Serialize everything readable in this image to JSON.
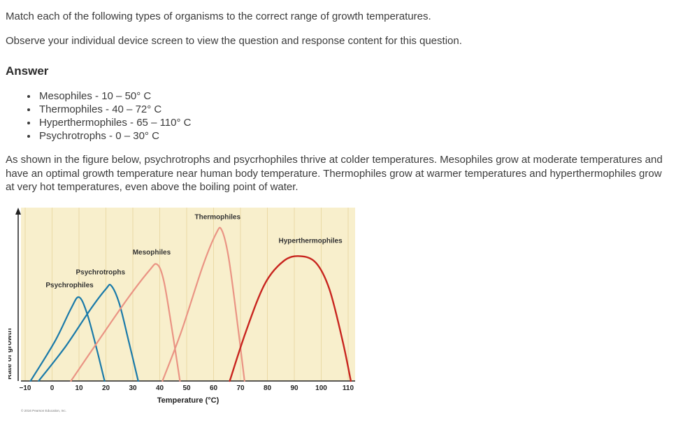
{
  "question": {
    "prompt": "Match each of the following types of organisms to the correct range of growth temperatures.",
    "note": "Observe your individual device screen to view the question and response content for this question."
  },
  "answer": {
    "heading": "Answer",
    "items": [
      "Mesophiles  - 10 – 50° C",
      "Thermophiles - 40 – 72°  C",
      "Hyperthermophiles - 65 – 110° C",
      "Psychrotrophs - 0 – 30° C"
    ],
    "explanation": "As shown in the figure below, psychrotrophs and psycrhophiles thrive at colder temperatures. Mesophiles grow at moderate temperatures and have an optimal growth temperature near human body temperature. Thermophiles grow at warmer temperatures and hyperthermophiles grow at very hot temperatures, even above the boiling point of water."
  },
  "chart_data": {
    "type": "line",
    "title": "",
    "xlabel": "Temperature (°C)",
    "ylabel": "Rate of growth",
    "xlim": [
      -10,
      110
    ],
    "ylim": [
      0,
      1
    ],
    "x_ticks": [
      -10,
      0,
      10,
      20,
      30,
      40,
      50,
      60,
      70,
      80,
      90,
      100,
      110
    ],
    "grid": true,
    "legend_position": "inline-labels",
    "plot_background": "#f8efcc",
    "grid_color": "#eadaa6",
    "axis_color": "#222222",
    "label_color": "#333333",
    "credit": "© 2016 Pearson Education, Inc.",
    "series": [
      {
        "name": "Psychrophiles",
        "color": "#1a7aa9",
        "stroke_width": 2.2,
        "optimum_temp": 10,
        "points": [
          [
            -8,
            0
          ],
          [
            1,
            0.24
          ],
          [
            7,
            0.44
          ],
          [
            10,
            0.51
          ],
          [
            13,
            0.41
          ],
          [
            16.5,
            0.2
          ],
          [
            19.5,
            0
          ]
        ],
        "label_pos": [
          6.5,
          0.57
        ]
      },
      {
        "name": "Psychrotrophs",
        "color": "#1a7aa9",
        "stroke_width": 2.2,
        "optimum_temp": 22,
        "points": [
          [
            -5,
            0
          ],
          [
            5,
            0.21
          ],
          [
            14,
            0.43
          ],
          [
            20,
            0.56
          ],
          [
            22,
            0.58
          ],
          [
            25,
            0.47
          ],
          [
            28.5,
            0.24
          ],
          [
            32,
            0
          ]
        ],
        "label_pos": [
          18,
          0.65
        ]
      },
      {
        "name": "Mesophiles",
        "color": "#ea9484",
        "stroke_width": 2.2,
        "optimum_temp": 39,
        "points": [
          [
            7,
            0
          ],
          [
            17,
            0.24
          ],
          [
            28,
            0.5
          ],
          [
            36,
            0.67
          ],
          [
            39,
            0.71
          ],
          [
            41.5,
            0.61
          ],
          [
            44.5,
            0.32
          ],
          [
            47.5,
            0
          ]
        ],
        "label_pos": [
          37,
          0.77
        ]
      },
      {
        "name": "Thermophiles",
        "color": "#ea9484",
        "stroke_width": 2.2,
        "optimum_temp": 63,
        "points": [
          [
            41,
            0
          ],
          [
            48,
            0.3
          ],
          [
            56,
            0.7
          ],
          [
            61,
            0.9
          ],
          [
            63,
            0.92
          ],
          [
            65.5,
            0.76
          ],
          [
            68.5,
            0.4
          ],
          [
            71.5,
            0
          ]
        ],
        "label_pos": [
          61.5,
          0.985
        ]
      },
      {
        "name": "Hyperthermophiles",
        "color": "#c8251f",
        "stroke_width": 2.4,
        "optimum_temp": 93,
        "points": [
          [
            66,
            0
          ],
          [
            72,
            0.3
          ],
          [
            79,
            0.59
          ],
          [
            86,
            0.73
          ],
          [
            92,
            0.76
          ],
          [
            98,
            0.72
          ],
          [
            103,
            0.56
          ],
          [
            108,
            0.24
          ],
          [
            111,
            0
          ]
        ],
        "label_pos": [
          96,
          0.84
        ]
      }
    ]
  }
}
